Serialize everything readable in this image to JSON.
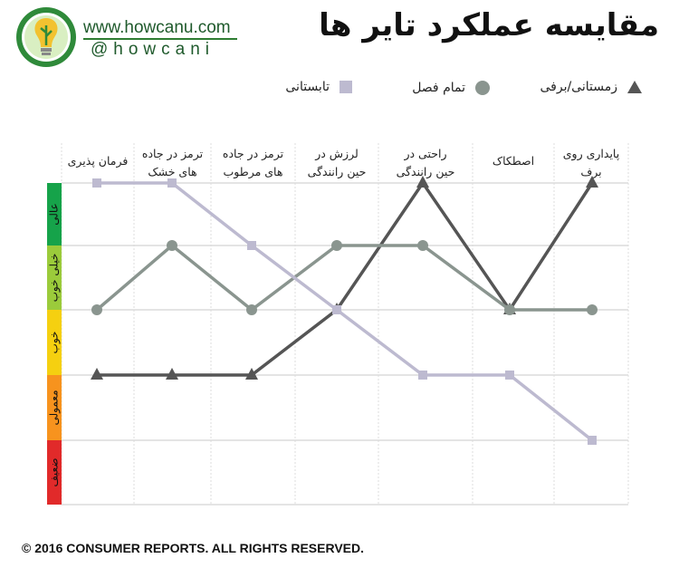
{
  "header": {
    "website": "www.howcanu.com",
    "handle": "@howcani",
    "title": "مقایسه عملکرد تایر ها"
  },
  "footer": "© 2016 CONSUMER REPORTS. ALL RIGHTS RESERVED.",
  "legend": [
    {
      "label": "زمستانی/برفی",
      "marker": "triangle",
      "color": "#555555"
    },
    {
      "label": "تمام فصل",
      "marker": "circle",
      "color": "#8a958f"
    },
    {
      "label": "تابستانی",
      "marker": "square",
      "color": "#bdbad0"
    }
  ],
  "chart_data": {
    "type": "line",
    "direction": "rtl",
    "categories": [
      "پایداری روی برف",
      "اصطکاک",
      "راحتی در حین رانندگی",
      "لرزش در حین رانندگی",
      "ترمز در جاده های مرطوب",
      "ترمز در جاده های خشک",
      "فرمان پذیری"
    ],
    "rating_levels": [
      {
        "label": "عالی",
        "value": 5,
        "color": "#16a34a"
      },
      {
        "label": "خیلی خوب",
        "value": 4,
        "color": "#9bcb3b"
      },
      {
        "label": "خوب",
        "value": 3,
        "color": "#f5d010"
      },
      {
        "label": "معمولی",
        "value": 2,
        "color": "#f7931e"
      },
      {
        "label": "ضعیف",
        "value": 1,
        "color": "#e12a2a"
      }
    ],
    "ylim": [
      1,
      5
    ],
    "grid": true,
    "series": [
      {
        "name": "زمستانی/برفی",
        "marker": "triangle",
        "color": "#555555",
        "values": [
          5,
          3,
          5,
          3,
          2,
          2,
          2
        ]
      },
      {
        "name": "تمام فصل",
        "marker": "circle",
        "color": "#8a958f",
        "values": [
          3,
          3,
          4,
          4,
          3,
          4,
          3
        ]
      },
      {
        "name": "تابستانی",
        "marker": "square",
        "color": "#bdbad0",
        "values": [
          1,
          2,
          2,
          3,
          4,
          5,
          5
        ]
      }
    ]
  }
}
